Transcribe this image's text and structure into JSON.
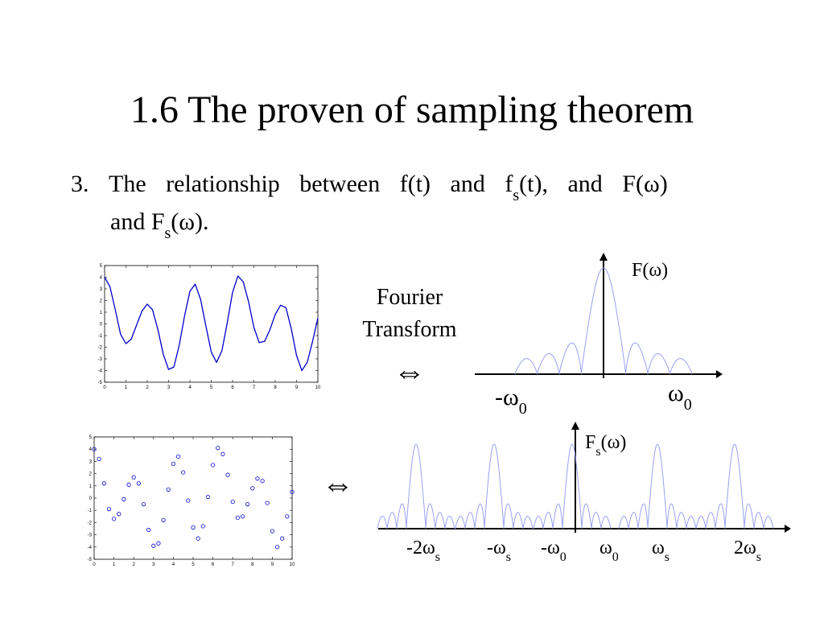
{
  "slide": {
    "title": "1.6 The proven of sampling theorem",
    "item": {
      "number": "3.",
      "line1": [
        "The relationship between f(t) and f",
        "s",
        "(t), and F(ω)"
      ],
      "line2": [
        "and F",
        "s",
        "(ω)."
      ]
    },
    "fourier_label": [
      "Fourier",
      "Transform"
    ],
    "equiv": [
      "⇔",
      "⇔"
    ],
    "spectrum_top": {
      "label": "F(ω)",
      "ticks": [
        [
          "-ω",
          "0"
        ],
        [
          "ω",
          "0"
        ]
      ]
    },
    "spectrum_bottom": {
      "label": [
        "F",
        "s",
        "(ω)"
      ],
      "ticks": [
        [
          "-2ω",
          "s"
        ],
        [
          "-ω",
          "s"
        ],
        [
          "-ω",
          "0"
        ],
        [
          "ω",
          "0"
        ],
        [
          "ω",
          "s"
        ],
        [
          "2ω",
          "s"
        ]
      ]
    }
  },
  "chart_data": [
    {
      "type": "line",
      "color": "#0000cc",
      "x": [
        0,
        0.25,
        0.5,
        0.75,
        1,
        1.25,
        1.5,
        1.75,
        2,
        2.25,
        2.5,
        2.75,
        3,
        3.25,
        3.5,
        3.75,
        4,
        4.25,
        4.5,
        4.75,
        5,
        5.25,
        5.5,
        5.75,
        6,
        6.25,
        6.5,
        6.75,
        7,
        7.25,
        7.5,
        7.75,
        8,
        8.25,
        8.5,
        8.75,
        9,
        9.25,
        9.5,
        9.75,
        10
      ],
      "values": [
        4,
        3.2,
        1.2,
        -0.9,
        -1.7,
        -1.3,
        -0.1,
        1.1,
        1.7,
        1.2,
        -0.5,
        -2.6,
        -3.9,
        -3.7,
        -1.8,
        0.7,
        2.8,
        3.4,
        2.1,
        -0.2,
        -2.4,
        -3.3,
        -2.3,
        0.1,
        2.7,
        4.1,
        3.6,
        1.9,
        -0.3,
        -1.6,
        -1.5,
        -0.5,
        0.8,
        1.6,
        1.4,
        -0.4,
        -2.7,
        -4,
        -3.3,
        -1.5,
        0.5
      ],
      "xlim": [
        0,
        10
      ],
      "ylim": [
        -5,
        5
      ],
      "xticks": [
        0,
        1,
        2,
        3,
        4,
        5,
        6,
        7,
        8,
        9,
        10
      ],
      "yticks": [
        -5,
        -4,
        -3,
        -2,
        -1,
        0,
        1,
        2,
        3,
        4,
        5
      ]
    },
    {
      "type": "scatter",
      "color": "#0000cc",
      "x": [
        0,
        0.25,
        0.5,
        0.75,
        1,
        1.25,
        1.5,
        1.75,
        2,
        2.25,
        2.5,
        2.75,
        3,
        3.25,
        3.5,
        3.75,
        4,
        4.25,
        4.5,
        4.75,
        5,
        5.25,
        5.5,
        5.75,
        6,
        6.25,
        6.5,
        6.75,
        7,
        7.25,
        7.5,
        7.75,
        8,
        8.25,
        8.5,
        8.75,
        9,
        9.25,
        9.5,
        9.75,
        10
      ],
      "values": [
        4,
        3.2,
        1.2,
        -0.9,
        -1.7,
        -1.3,
        -0.1,
        1.1,
        1.7,
        1.2,
        -0.5,
        -2.6,
        -3.9,
        -3.7,
        -1.8,
        0.7,
        2.8,
        3.4,
        2.1,
        -0.2,
        -2.4,
        -3.3,
        -2.3,
        0.1,
        2.7,
        4.1,
        3.6,
        1.9,
        -0.3,
        -1.6,
        -1.5,
        -0.5,
        0.8,
        1.6,
        1.4,
        -0.4,
        -2.7,
        -4,
        -3.3,
        -1.5,
        0.5
      ],
      "xlim": [
        0,
        10
      ],
      "ylim": [
        -5,
        5
      ],
      "xticks": [
        0,
        1,
        2,
        3,
        4,
        5,
        6,
        7,
        8,
        9,
        10
      ],
      "yticks": [
        -5,
        -4,
        -3,
        -2,
        -1,
        0,
        1,
        2,
        3,
        4,
        5
      ]
    }
  ]
}
